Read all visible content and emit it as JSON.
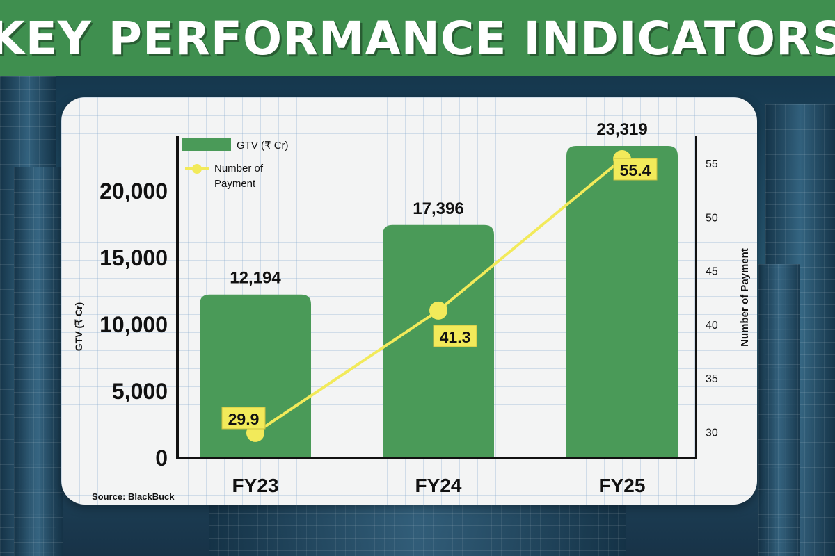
{
  "title": "KEY PERFORMANCE INDICATORS",
  "source": "Source: BlackBuck",
  "colors": {
    "bar": "#4a9a58",
    "line": "#f2ea5a",
    "label_bg": "#f2ea5a",
    "title_bg": "#3f8f4f"
  },
  "chart_data": {
    "type": "bar+line",
    "categories": [
      "FY23",
      "FY24",
      "FY25"
    ],
    "series": [
      {
        "name": "GTV (₹ Cr)",
        "kind": "bar",
        "axis": "left",
        "values": [
          12194,
          17396,
          23319
        ],
        "labels": [
          "12,194",
          "17,396",
          "23,319"
        ]
      },
      {
        "name": "Number of Payment",
        "kind": "line",
        "axis": "right",
        "values": [
          29.9,
          41.3,
          55.4
        ],
        "labels": [
          "29.9",
          "41.3",
          "55.4"
        ]
      }
    ],
    "legend": {
      "bar_label": "GTV (₹ Cr)",
      "line_label_1": "Number of",
      "line_label_2": "Payment",
      "position": "top-left"
    },
    "y_left": {
      "label": "GTV (₹ Cr)",
      "range": [
        0,
        23319
      ],
      "ticks": [
        0,
        5000,
        10000,
        15000,
        20000
      ],
      "tick_labels": [
        "0",
        "5,000",
        "10,000",
        "15,000",
        "20,000"
      ]
    },
    "y_right": {
      "label": "Number of Payment",
      "range": [
        27.5,
        56.5
      ],
      "ticks": [
        30,
        35,
        40,
        45,
        50,
        55
      ],
      "tick_labels": [
        "30",
        "35",
        "40",
        "45",
        "50",
        "55"
      ]
    }
  }
}
